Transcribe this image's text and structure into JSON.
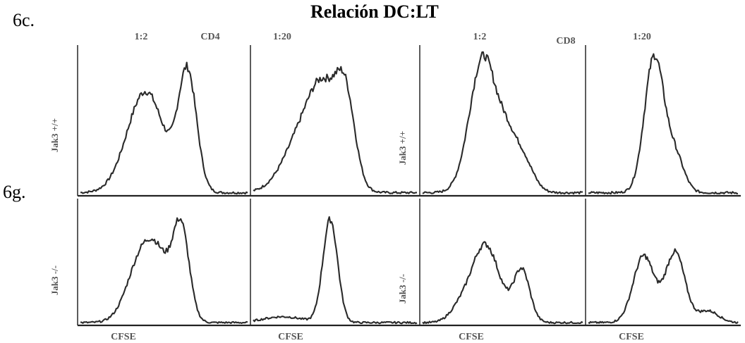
{
  "figure": {
    "title": "Relación DC:LT",
    "row_labels": [
      "6c.",
      "6g."
    ],
    "group_labels": [
      "CD4",
      "CD8"
    ],
    "col_ratios": [
      "1:2",
      "1:20",
      "1:2",
      "1:20"
    ],
    "row_genotypes": [
      "Jak3 +/+",
      "Jak3 -/-"
    ],
    "x_label": "CFSE"
  },
  "chart_data": {
    "type": "line",
    "title": "Relación DC:LT",
    "xlabel": "CFSE",
    "x_domain": [
      0,
      1
    ],
    "y_domain": [
      0,
      1
    ],
    "grid": false,
    "note": "CFSE dilution histograms; peak heights are relative counts (fraction of panel height). Peaks: [position along CFSE axis 0-1, relative height 0-1, width].",
    "panels": [
      {
        "row": 0,
        "col": 0,
        "group": "CD4",
        "ratio": "1:2",
        "genotype": "Jak3 +/+",
        "peaks": [
          [
            0.39,
            0.72,
            0.11
          ],
          [
            0.64,
            0.84,
            0.055
          ]
        ]
      },
      {
        "row": 0,
        "col": 1,
        "group": "CD4",
        "ratio": "1:20",
        "genotype": "Jak3 +/+",
        "peaks": [
          [
            0.35,
            0.55,
            0.13
          ],
          [
            0.56,
            0.63,
            0.06
          ],
          [
            0.43,
            0.3,
            0.07
          ]
        ]
      },
      {
        "row": 0,
        "col": 2,
        "group": "CD8",
        "ratio": "1:2",
        "genotype": "Jak3 +/+",
        "peaks": [
          [
            0.38,
            0.97,
            0.085
          ],
          [
            0.61,
            0.28,
            0.07
          ],
          [
            0.52,
            0.18,
            0.05
          ]
        ]
      },
      {
        "row": 0,
        "col": 3,
        "group": "CD8",
        "ratio": "1:20",
        "genotype": "Jak3 +/+",
        "peaks": [
          [
            0.44,
            0.96,
            0.065
          ],
          [
            0.58,
            0.25,
            0.06
          ]
        ]
      },
      {
        "row": 1,
        "col": 0,
        "group": "CD4",
        "ratio": "1:2",
        "genotype": "Jak3 -/-",
        "peaks": [
          [
            0.38,
            0.62,
            0.09
          ],
          [
            0.6,
            0.82,
            0.05
          ],
          [
            0.48,
            0.26,
            0.06
          ]
        ]
      },
      {
        "row": 1,
        "col": 1,
        "group": "CD4",
        "ratio": "1:20",
        "genotype": "Jak3 -/-",
        "peaks": [
          [
            0.47,
            0.88,
            0.045
          ],
          [
            0.18,
            0.05,
            0.12
          ]
        ]
      },
      {
        "row": 1,
        "col": 2,
        "group": "CD8",
        "ratio": "1:2",
        "genotype": "Jak3 -/-",
        "peaks": [
          [
            0.39,
            0.67,
            0.09
          ],
          [
            0.62,
            0.44,
            0.05
          ],
          [
            0.22,
            0.08,
            0.06
          ]
        ]
      },
      {
        "row": 1,
        "col": 3,
        "group": "CD8",
        "ratio": "1:20",
        "genotype": "Jak3 -/-",
        "peaks": [
          [
            0.37,
            0.57,
            0.07
          ],
          [
            0.58,
            0.6,
            0.065
          ],
          [
            0.8,
            0.1,
            0.07
          ]
        ]
      }
    ]
  }
}
